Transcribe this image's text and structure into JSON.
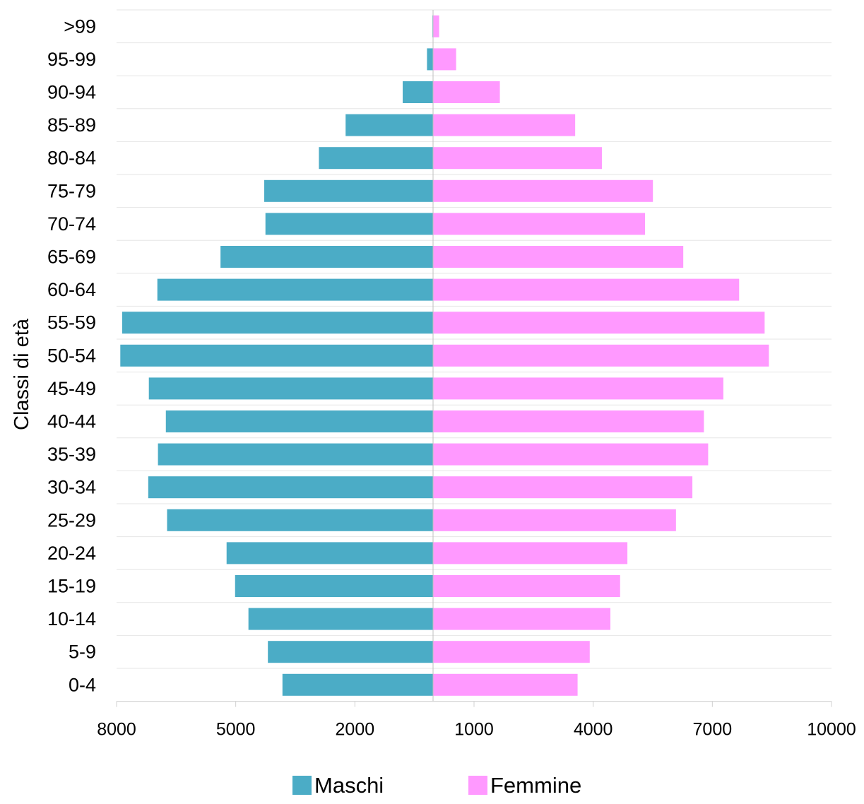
{
  "chart_data": {
    "type": "bar",
    "orientation": "horizontal-population-pyramid",
    "ylabel": "Classi di età",
    "categories": [
      ">99",
      "95-99",
      "90-94",
      "85-89",
      "80-84",
      "75-79",
      "70-74",
      "65-69",
      "60-64",
      "55-59",
      "50-54",
      "45-49",
      "40-44",
      "35-39",
      "30-34",
      "25-29",
      "20-24",
      "15-19",
      "10-14",
      "5-9",
      "0-4"
    ],
    "series": [
      {
        "name": "Maschi",
        "color": "#4BACC6",
        "values": [
          5,
          50,
          250,
          720,
          940,
          1390,
          1380,
          1750,
          2270,
          2560,
          2575,
          2340,
          2200,
          2265,
          2345,
          2190,
          1700,
          1630,
          1520,
          1360,
          1240
        ]
      },
      {
        "name": "Femmine",
        "color": "#FF99FF",
        "values": [
          50,
          190,
          550,
          1170,
          1390,
          1810,
          1745,
          2060,
          2520,
          2730,
          2765,
          2390,
          2230,
          2265,
          2135,
          2000,
          1600,
          1540,
          1460,
          1290,
          1190
        ]
      }
    ],
    "xticks": [
      "8000",
      "5000",
      "2000",
      "1000",
      "4000",
      "7000",
      "10000"
    ],
    "xlim": [
      -3000,
      3000
    ],
    "grid": true,
    "legend": "bottom"
  }
}
